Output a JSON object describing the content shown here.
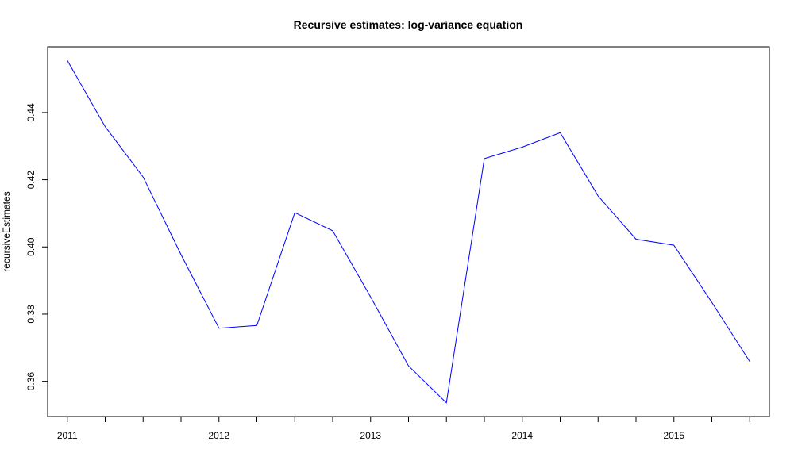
{
  "chart_data": {
    "type": "line",
    "title": "Recursive estimates: log-variance equation",
    "xlabel": "",
    "ylabel": "recursiveEstimates",
    "x": [
      2011.0,
      2011.25,
      2011.5,
      2011.75,
      2012.0,
      2012.25,
      2012.5,
      2012.75,
      2013.0,
      2013.25,
      2013.5,
      2013.75,
      2014.0,
      2014.25,
      2014.5,
      2014.75,
      2015.0,
      2015.25,
      2015.5
    ],
    "series": [
      {
        "values": [
          0.4555,
          0.4358,
          0.4208,
          0.3977,
          0.3758,
          0.3766,
          0.4102,
          0.4048,
          0.3851,
          0.3646,
          0.3536,
          0.4263,
          0.4297,
          0.434,
          0.4152,
          0.4023,
          0.4005,
          0.3835,
          0.3659
        ]
      }
    ],
    "x_ticks": [
      2011,
      2011.25,
      2011.5,
      2011.75,
      2012,
      2012.25,
      2012.5,
      2012.75,
      2013,
      2013.25,
      2013.5,
      2013.75,
      2014,
      2014.25,
      2014.5,
      2014.75,
      2015,
      2015.25,
      2015.5
    ],
    "x_tick_labels": [
      {
        "value": 2011,
        "label": "2011"
      },
      {
        "value": 2012,
        "label": "2012"
      },
      {
        "value": 2013,
        "label": "2013"
      },
      {
        "value": 2014,
        "label": "2014"
      },
      {
        "value": 2015,
        "label": "2015"
      }
    ],
    "y_ticks": [
      {
        "value": 0.36,
        "label": "0.36"
      },
      {
        "value": 0.38,
        "label": "0.38"
      },
      {
        "value": 0.4,
        "label": "0.40"
      },
      {
        "value": 0.42,
        "label": "0.42"
      },
      {
        "value": 0.44,
        "label": "0.44"
      }
    ],
    "xlim": [
      2010.8704,
      2015.6296
    ],
    "ylim": [
      0.34952,
      0.45958
    ],
    "grid": false,
    "line_color": "#0000ff"
  }
}
